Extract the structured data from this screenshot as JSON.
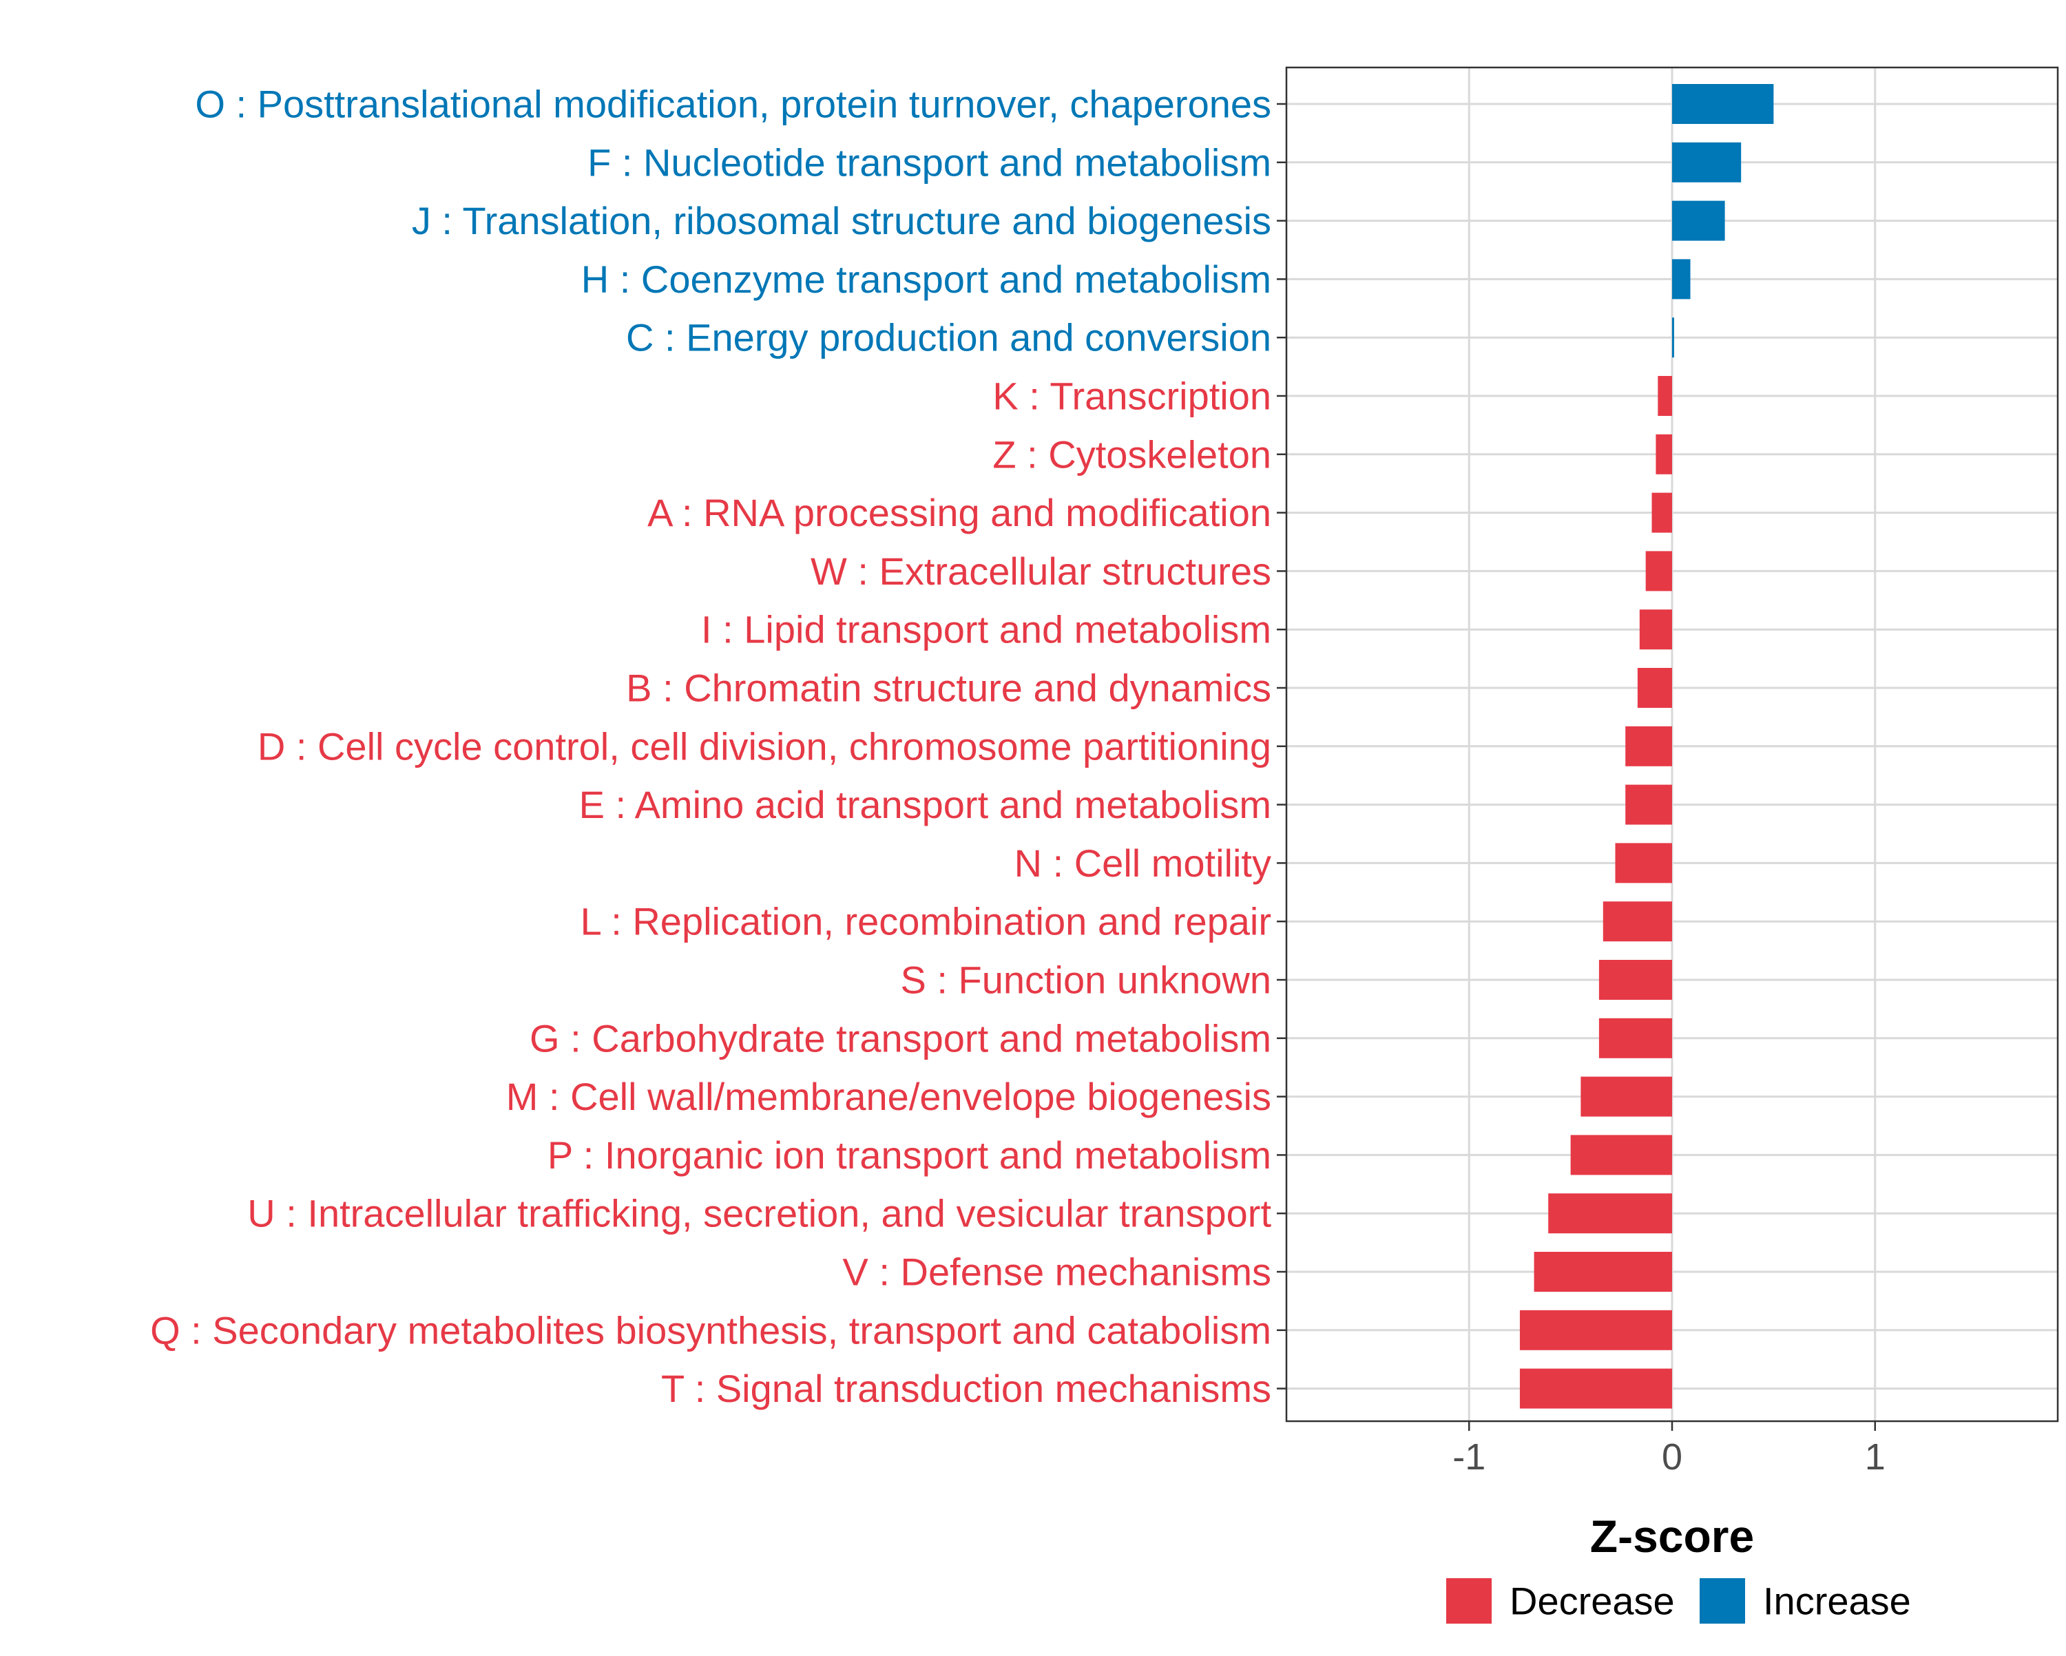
{
  "chart_data": {
    "type": "bar",
    "orientation": "horizontal",
    "title": "",
    "xlabel": "Z-score",
    "ylabel": "",
    "xlim": [
      -1.9,
      1.9
    ],
    "x_ticks": [
      -1,
      0,
      1
    ],
    "x_tick_labels": [
      "-1",
      "0",
      "1"
    ],
    "grid": true,
    "legend": {
      "position": "bottom",
      "entries": [
        {
          "label": "Decrease",
          "color": "#E63946"
        },
        {
          "label": "Increase",
          "color": "#0077B6"
        }
      ]
    },
    "categories": [
      "O : Posttranslational modification, protein turnover, chaperones",
      "F : Nucleotide transport and metabolism",
      "J : Translation, ribosomal structure and biogenesis",
      "H : Coenzyme transport and metabolism",
      "C : Energy production and conversion",
      "K : Transcription",
      "Z : Cytoskeleton",
      "A : RNA processing and modification",
      "W : Extracellular structures",
      "I : Lipid transport and metabolism",
      "B : Chromatin structure and dynamics",
      "D : Cell cycle control, cell division, chromosome partitioning",
      "E : Amino acid transport and metabolism",
      "N : Cell motility",
      "L : Replication, recombination and repair",
      "S : Function unknown",
      "G : Carbohydrate transport and metabolism",
      "M : Cell wall/membrane/envelope biogenesis",
      "P : Inorganic ion transport and metabolism",
      "U : Intracellular trafficking, secretion, and vesicular transport",
      "V : Defense mechanisms",
      "Q : Secondary metabolites biosynthesis, transport and catabolism",
      "T : Signal transduction mechanisms"
    ],
    "values": [
      0.5,
      0.34,
      0.26,
      0.09,
      0.01,
      -0.07,
      -0.08,
      -0.1,
      -0.13,
      -0.16,
      -0.17,
      -0.23,
      -0.23,
      -0.28,
      -0.34,
      -0.36,
      -0.36,
      -0.45,
      -0.5,
      -0.61,
      -0.68,
      -0.75,
      -0.75
    ],
    "groups": [
      "Increase",
      "Increase",
      "Increase",
      "Increase",
      "Increase",
      "Decrease",
      "Decrease",
      "Decrease",
      "Decrease",
      "Decrease",
      "Decrease",
      "Decrease",
      "Decrease",
      "Decrease",
      "Decrease",
      "Decrease",
      "Decrease",
      "Decrease",
      "Decrease",
      "Decrease",
      "Decrease",
      "Decrease",
      "Decrease"
    ],
    "colors": {
      "Decrease": "#E63946",
      "Increase": "#0077B6"
    }
  }
}
